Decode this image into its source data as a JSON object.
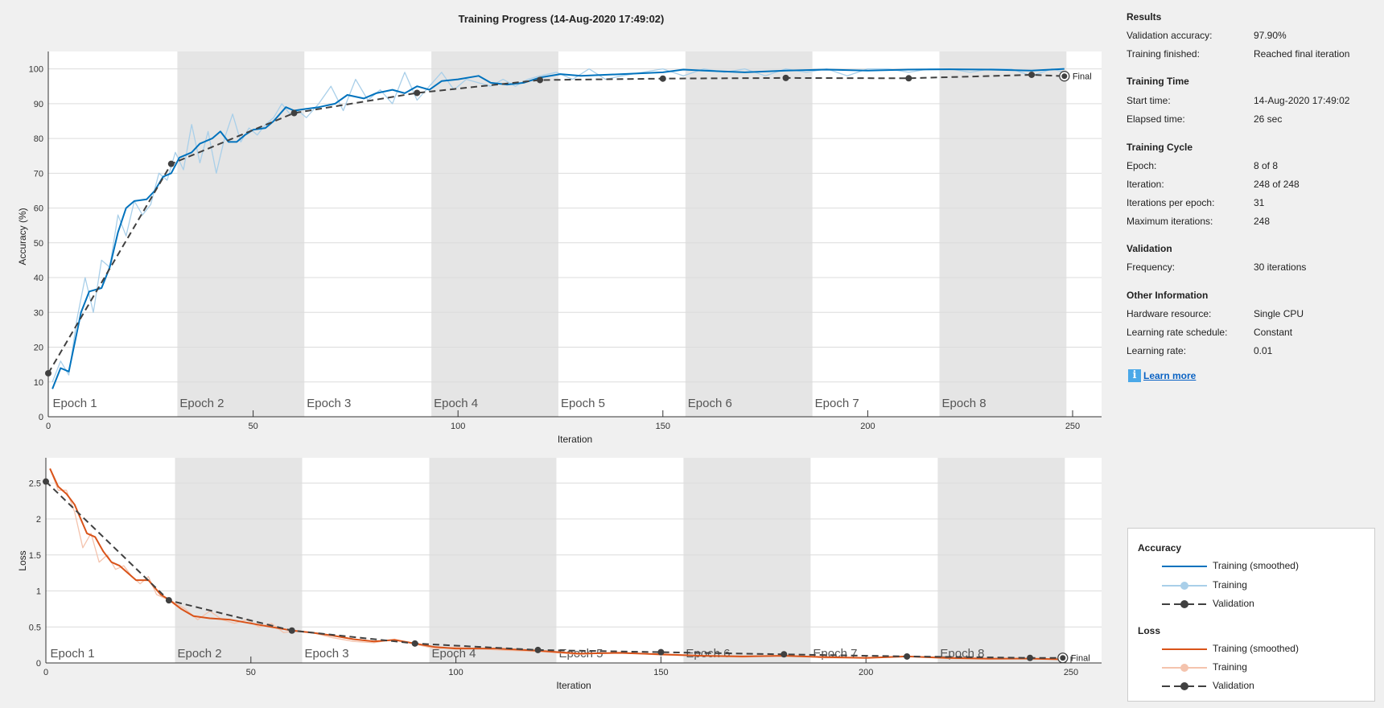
{
  "title": "Training Progress (14-Aug-2020 17:49:02)",
  "colors": {
    "acc_smoothed": "#0072bd",
    "acc_raw": "#a9cfe9",
    "loss_smoothed": "#d95319",
    "loss_raw": "#f4c3ad",
    "validation": "#404040",
    "epoch_shade": "#e5e5e5"
  },
  "epoch_labels": [
    "Epoch 1",
    "Epoch 2",
    "Epoch 3",
    "Epoch 4",
    "Epoch 5",
    "Epoch 6",
    "Epoch 7",
    "Epoch 8"
  ],
  "final_label": "Final",
  "chart_data": [
    {
      "type": "line",
      "ylabel": "Accuracy (%)",
      "xlabel": "Iteration",
      "xlim": [
        0,
        258
      ],
      "ylim": [
        0,
        105
      ],
      "xticks": [
        0,
        50,
        100,
        150,
        200,
        250
      ],
      "yticks": [
        0,
        10,
        20,
        30,
        40,
        50,
        60,
        70,
        80,
        90,
        100
      ],
      "grid": "horizontal",
      "iterations_per_epoch": 31,
      "series": [
        {
          "name": "Training",
          "x": [
            1,
            3,
            5,
            7,
            9,
            11,
            13,
            15,
            17,
            19,
            21,
            23,
            25,
            27,
            29,
            31,
            33,
            35,
            37,
            39,
            41,
            43,
            45,
            47,
            49,
            51,
            53,
            55,
            57,
            59,
            61,
            63,
            66,
            69,
            72,
            75,
            78,
            81,
            84,
            87,
            90,
            93,
            96,
            99,
            102,
            105,
            108,
            111,
            114,
            117,
            120,
            124,
            128,
            132,
            136,
            140,
            145,
            150,
            155,
            160,
            165,
            170,
            175,
            180,
            185,
            190,
            195,
            200,
            205,
            210,
            215,
            220,
            225,
            230,
            235,
            240,
            245,
            248
          ],
          "y": [
            10,
            16,
            12,
            28,
            40,
            30,
            45,
            43,
            58,
            52,
            62,
            58,
            61,
            70,
            68,
            76,
            71,
            84,
            73,
            82,
            70,
            80,
            87,
            79,
            83,
            81,
            84,
            86,
            90,
            87,
            88,
            86,
            90,
            95,
            88,
            97,
            91,
            94,
            90,
            99,
            91,
            95,
            99,
            94,
            97,
            96,
            95,
            97,
            95,
            97,
            98,
            99,
            97,
            100,
            97,
            98,
            99,
            100,
            98,
            100,
            99,
            100,
            98,
            100,
            99,
            100,
            98,
            100,
            100,
            99,
            100,
            100,
            99,
            100,
            100,
            98,
            100,
            99
          ]
        },
        {
          "name": "Training (smoothed)",
          "x": [
            1,
            3,
            5,
            8,
            10,
            13,
            15,
            17,
            19,
            21,
            24,
            26,
            28,
            30,
            32,
            35,
            37,
            40,
            42,
            44,
            46,
            48,
            50,
            53,
            55,
            58,
            60,
            63,
            66,
            70,
            73,
            77,
            80,
            84,
            87,
            90,
            93,
            96,
            100,
            105,
            108,
            112,
            116,
            120,
            125,
            130,
            140,
            150,
            155,
            160,
            170,
            180,
            190,
            200,
            210,
            220,
            230,
            240,
            248
          ],
          "y": [
            8,
            14,
            13,
            30,
            36,
            37,
            43,
            53,
            60,
            62,
            62.5,
            65,
            69,
            70,
            74.5,
            76,
            78.5,
            80,
            82,
            79,
            79,
            81,
            82.5,
            83,
            85,
            89,
            88,
            88.5,
            89,
            90,
            92.5,
            91.5,
            93,
            94,
            93,
            95,
            94,
            96.5,
            97,
            98,
            96,
            95.5,
            96,
            97.5,
            98.5,
            98,
            98.5,
            99,
            99.8,
            99.5,
            99,
            99.5,
            99.8,
            99.5,
            99.8,
            99.9,
            99.8,
            99.5,
            100
          ]
        },
        {
          "name": "Validation",
          "x": [
            0,
            30,
            60,
            90,
            120,
            150,
            180,
            210,
            240,
            248
          ],
          "y": [
            12.5,
            72.7,
            87.3,
            93.1,
            96.8,
            97.2,
            97.4,
            97.3,
            98.3,
            97.9
          ]
        }
      ]
    },
    {
      "type": "line",
      "ylabel": "Loss",
      "xlabel": "Iteration",
      "xlim": [
        0,
        258
      ],
      "ylim": [
        0,
        2.85
      ],
      "xticks": [
        0,
        50,
        100,
        150,
        200,
        250
      ],
      "yticks": [
        0,
        0.5,
        1,
        1.5,
        2,
        2.5
      ],
      "grid": "horizontal",
      "iterations_per_epoch": 31,
      "series": [
        {
          "name": "Training",
          "x": [
            1,
            3,
            5,
            7,
            9,
            11,
            13,
            15,
            17,
            19,
            21,
            23,
            25,
            27,
            29,
            31,
            34,
            37,
            40,
            43,
            46,
            49,
            52,
            55,
            58,
            61,
            65,
            70,
            75,
            80,
            85,
            90,
            95,
            100,
            110,
            120,
            130,
            140,
            150,
            160,
            170,
            180,
            190,
            200,
            210,
            220,
            230,
            240,
            248
          ],
          "y": [
            2.7,
            2.4,
            2.4,
            2.1,
            1.6,
            1.8,
            1.4,
            1.5,
            1.3,
            1.35,
            1.2,
            1.1,
            1.2,
            0.95,
            0.9,
            0.85,
            0.75,
            0.6,
            0.72,
            0.6,
            0.55,
            0.6,
            0.5,
            0.55,
            0.42,
            0.45,
            0.42,
            0.35,
            0.3,
            0.28,
            0.33,
            0.26,
            0.2,
            0.22,
            0.18,
            0.16,
            0.12,
            0.15,
            0.11,
            0.1,
            0.08,
            0.11,
            0.07,
            0.07,
            0.09,
            0.06,
            0.05,
            0.06,
            0.05
          ]
        },
        {
          "name": "Training (smoothed)",
          "x": [
            1,
            3,
            5,
            7,
            10,
            12,
            14,
            16,
            18,
            20,
            22,
            25,
            28,
            30,
            33,
            36,
            40,
            45,
            50,
            55,
            60,
            65,
            70,
            75,
            80,
            85,
            90,
            95,
            100,
            110,
            120,
            130,
            140,
            150,
            160,
            170,
            180,
            190,
            200,
            210,
            220,
            230,
            240,
            248
          ],
          "y": [
            2.7,
            2.45,
            2.35,
            2.2,
            1.8,
            1.75,
            1.55,
            1.4,
            1.35,
            1.25,
            1.15,
            1.15,
            0.95,
            0.88,
            0.75,
            0.65,
            0.62,
            0.6,
            0.55,
            0.5,
            0.45,
            0.42,
            0.38,
            0.33,
            0.3,
            0.32,
            0.27,
            0.22,
            0.2,
            0.2,
            0.17,
            0.13,
            0.14,
            0.12,
            0.1,
            0.09,
            0.1,
            0.08,
            0.07,
            0.09,
            0.07,
            0.06,
            0.06,
            0.05
          ]
        },
        {
          "name": "Validation",
          "x": [
            0,
            30,
            60,
            90,
            120,
            150,
            180,
            210,
            240,
            248
          ],
          "y": [
            2.52,
            0.87,
            0.45,
            0.27,
            0.18,
            0.15,
            0.12,
            0.09,
            0.07,
            0.07
          ]
        }
      ]
    }
  ],
  "results": {
    "heading": "Results",
    "rows": [
      {
        "label": "Validation accuracy:",
        "value": "97.90%"
      },
      {
        "label": "Training finished:",
        "value": "Reached final iteration"
      }
    ]
  },
  "training_time": {
    "heading": "Training Time",
    "rows": [
      {
        "label": "Start time:",
        "value": "14-Aug-2020 17:49:02"
      },
      {
        "label": "Elapsed time:",
        "value": "26 sec"
      }
    ]
  },
  "training_cycle": {
    "heading": "Training Cycle",
    "rows": [
      {
        "label": "Epoch:",
        "value": "8 of 8"
      },
      {
        "label": "Iteration:",
        "value": "248 of 248"
      },
      {
        "label": "Iterations per epoch:",
        "value": "31"
      },
      {
        "label": "Maximum iterations:",
        "value": "248"
      }
    ]
  },
  "validation": {
    "heading": "Validation",
    "rows": [
      {
        "label": "Frequency:",
        "value": "30 iterations"
      }
    ]
  },
  "other": {
    "heading": "Other Information",
    "rows": [
      {
        "label": "Hardware resource:",
        "value": "Single CPU"
      },
      {
        "label": "Learning rate schedule:",
        "value": "Constant"
      },
      {
        "label": "Learning rate:",
        "value": "0.01"
      }
    ]
  },
  "learn_more": {
    "icon": "info-icon",
    "label": "Learn more"
  },
  "legend": {
    "accuracy_heading": "Accuracy",
    "loss_heading": "Loss",
    "training_smoothed": "Training (smoothed)",
    "training": "Training",
    "validation": "Validation"
  }
}
